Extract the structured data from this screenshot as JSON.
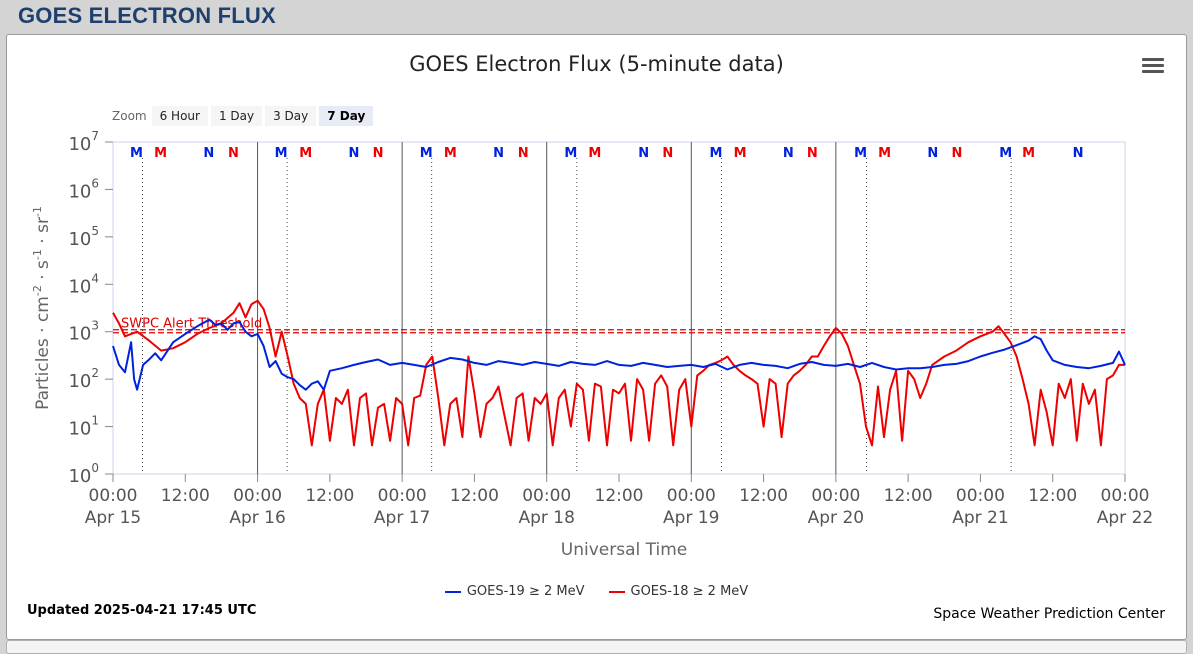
{
  "page_title": "GOES ELECTRON FLUX",
  "zoom": {
    "label": "Zoom",
    "buttons": [
      "6 Hour",
      "1 Day",
      "3 Day",
      "7 Day"
    ],
    "active": "7 Day"
  },
  "updated": "Updated 2025-04-21 17:45 UTC",
  "credit": "Space Weather Prediction Center",
  "chart_data": {
    "type": "line",
    "title": "GOES Electron Flux (5-minute data)",
    "xlabel": "Universal Time",
    "ylabel_parts": [
      "Particles · cm",
      "-2",
      " · s",
      "-1",
      " · sr",
      "-1"
    ],
    "y_scale": "log",
    "ylim": [
      1,
      10000000
    ],
    "y_ticks": [
      {
        "base": "10",
        "exp": "0"
      },
      {
        "base": "10",
        "exp": "1"
      },
      {
        "base": "10",
        "exp": "2"
      },
      {
        "base": "10",
        "exp": "3"
      },
      {
        "base": "10",
        "exp": "4"
      },
      {
        "base": "10",
        "exp": "5"
      },
      {
        "base": "10",
        "exp": "6"
      },
      {
        "base": "10",
        "exp": "7"
      }
    ],
    "x_range_hours": [
      0,
      168
    ],
    "x_ticks": [
      {
        "time": "00:00",
        "date": "Apr 15"
      },
      {
        "time": "12:00",
        "date": ""
      },
      {
        "time": "00:00",
        "date": "Apr 16"
      },
      {
        "time": "12:00",
        "date": ""
      },
      {
        "time": "00:00",
        "date": "Apr 17"
      },
      {
        "time": "12:00",
        "date": ""
      },
      {
        "time": "00:00",
        "date": "Apr 18"
      },
      {
        "time": "12:00",
        "date": ""
      },
      {
        "time": "00:00",
        "date": "Apr 19"
      },
      {
        "time": "12:00",
        "date": ""
      },
      {
        "time": "00:00",
        "date": "Apr 20"
      },
      {
        "time": "12:00",
        "date": ""
      },
      {
        "time": "00:00",
        "date": "Apr 21"
      },
      {
        "time": "12:00",
        "date": ""
      },
      {
        "time": "00:00",
        "date": "Apr 22"
      }
    ],
    "threshold": {
      "label": "SWPC Alert Threshold",
      "value": 1000,
      "color": "#dd0000"
    },
    "grid": false,
    "legend_position": "bottom",
    "series": [
      {
        "name": "GOES-19 ≥ 2 MeV",
        "color": "#0022dd",
        "points": [
          [
            0,
            500
          ],
          [
            1,
            200
          ],
          [
            2,
            140
          ],
          [
            3,
            600
          ],
          [
            3.5,
            100
          ],
          [
            4,
            60
          ],
          [
            5,
            200
          ],
          [
            6,
            260
          ],
          [
            7,
            350
          ],
          [
            8,
            250
          ],
          [
            10,
            600
          ],
          [
            12,
            900
          ],
          [
            14,
            1300
          ],
          [
            16,
            1800
          ],
          [
            17,
            1400
          ],
          [
            18,
            1500
          ],
          [
            19,
            1100
          ],
          [
            20,
            1500
          ],
          [
            21,
            1600
          ],
          [
            22,
            1000
          ],
          [
            23,
            800
          ],
          [
            24,
            900
          ],
          [
            25,
            500
          ],
          [
            26,
            180
          ],
          [
            27,
            240
          ],
          [
            28,
            130
          ],
          [
            29,
            110
          ],
          [
            30,
            100
          ],
          [
            31,
            75
          ],
          [
            32,
            60
          ],
          [
            33,
            80
          ],
          [
            34,
            90
          ],
          [
            35,
            60
          ],
          [
            36,
            150
          ],
          [
            38,
            170
          ],
          [
            40,
            200
          ],
          [
            42,
            230
          ],
          [
            44,
            260
          ],
          [
            46,
            200
          ],
          [
            48,
            220
          ],
          [
            50,
            200
          ],
          [
            52,
            180
          ],
          [
            54,
            230
          ],
          [
            56,
            280
          ],
          [
            58,
            260
          ],
          [
            60,
            220
          ],
          [
            62,
            200
          ],
          [
            64,
            240
          ],
          [
            66,
            220
          ],
          [
            68,
            200
          ],
          [
            70,
            230
          ],
          [
            72,
            210
          ],
          [
            74,
            190
          ],
          [
            76,
            230
          ],
          [
            78,
            210
          ],
          [
            80,
            200
          ],
          [
            82,
            240
          ],
          [
            84,
            200
          ],
          [
            86,
            190
          ],
          [
            88,
            220
          ],
          [
            90,
            200
          ],
          [
            92,
            180
          ],
          [
            94,
            190
          ],
          [
            96,
            200
          ],
          [
            98,
            180
          ],
          [
            100,
            210
          ],
          [
            102,
            160
          ],
          [
            104,
            200
          ],
          [
            106,
            220
          ],
          [
            108,
            200
          ],
          [
            110,
            190
          ],
          [
            112,
            170
          ],
          [
            114,
            210
          ],
          [
            116,
            230
          ],
          [
            118,
            200
          ],
          [
            120,
            190
          ],
          [
            122,
            210
          ],
          [
            124,
            180
          ],
          [
            126,
            220
          ],
          [
            128,
            180
          ],
          [
            130,
            160
          ],
          [
            132,
            170
          ],
          [
            134,
            170
          ],
          [
            136,
            180
          ],
          [
            138,
            200
          ],
          [
            140,
            210
          ],
          [
            142,
            240
          ],
          [
            144,
            300
          ],
          [
            146,
            360
          ],
          [
            148,
            420
          ],
          [
            150,
            520
          ],
          [
            152,
            650
          ],
          [
            153,
            800
          ],
          [
            154,
            700
          ],
          [
            155,
            400
          ],
          [
            156,
            250
          ],
          [
            158,
            200
          ],
          [
            160,
            180
          ],
          [
            162,
            170
          ],
          [
            164,
            190
          ],
          [
            166,
            220
          ],
          [
            167,
            380
          ],
          [
            168,
            200
          ]
        ]
      },
      {
        "name": "GOES-18 ≥ 2 MeV",
        "color": "#ee0000",
        "points": [
          [
            0,
            2500
          ],
          [
            1,
            1500
          ],
          [
            2,
            800
          ],
          [
            4,
            1000
          ],
          [
            6,
            650
          ],
          [
            8,
            400
          ],
          [
            10,
            450
          ],
          [
            12,
            600
          ],
          [
            14,
            900
          ],
          [
            16,
            1200
          ],
          [
            18,
            1500
          ],
          [
            20,
            2500
          ],
          [
            21,
            4000
          ],
          [
            22,
            2000
          ],
          [
            23,
            3800
          ],
          [
            24,
            4500
          ],
          [
            25,
            3000
          ],
          [
            26,
            1200
          ],
          [
            27,
            300
          ],
          [
            28,
            1000
          ],
          [
            29,
            300
          ],
          [
            30,
            80
          ],
          [
            31,
            40
          ],
          [
            32,
            30
          ],
          [
            33,
            4
          ],
          [
            34,
            30
          ],
          [
            35,
            60
          ],
          [
            36,
            5
          ],
          [
            37,
            40
          ],
          [
            38,
            30
          ],
          [
            39,
            60
          ],
          [
            40,
            4
          ],
          [
            41,
            40
          ],
          [
            42,
            50
          ],
          [
            43,
            4
          ],
          [
            44,
            25
          ],
          [
            45,
            30
          ],
          [
            46,
            5
          ],
          [
            47,
            40
          ],
          [
            48,
            30
          ],
          [
            49,
            4
          ],
          [
            50,
            40
          ],
          [
            51,
            45
          ],
          [
            52,
            200
          ],
          [
            53,
            300
          ],
          [
            54,
            40
          ],
          [
            55,
            4
          ],
          [
            56,
            30
          ],
          [
            57,
            40
          ],
          [
            58,
            6
          ],
          [
            59,
            300
          ],
          [
            60,
            50
          ],
          [
            61,
            6
          ],
          [
            62,
            30
          ],
          [
            63,
            40
          ],
          [
            64,
            70
          ],
          [
            66,
            4
          ],
          [
            67,
            40
          ],
          [
            68,
            50
          ],
          [
            69,
            5
          ],
          [
            70,
            40
          ],
          [
            71,
            30
          ],
          [
            72,
            50
          ],
          [
            73,
            4
          ],
          [
            74,
            40
          ],
          [
            75,
            60
          ],
          [
            76,
            10
          ],
          [
            77,
            80
          ],
          [
            78,
            60
          ],
          [
            79,
            5
          ],
          [
            80,
            80
          ],
          [
            81,
            70
          ],
          [
            82,
            4
          ],
          [
            83,
            60
          ],
          [
            84,
            50
          ],
          [
            85,
            80
          ],
          [
            86,
            5
          ],
          [
            87,
            100
          ],
          [
            88,
            60
          ],
          [
            89,
            5
          ],
          [
            90,
            80
          ],
          [
            91,
            120
          ],
          [
            92,
            70
          ],
          [
            93,
            4
          ],
          [
            94,
            60
          ],
          [
            95,
            100
          ],
          [
            96,
            10
          ],
          [
            97,
            120
          ],
          [
            98,
            150
          ],
          [
            99,
            200
          ],
          [
            100,
            220
          ],
          [
            101,
            250
          ],
          [
            102,
            300
          ],
          [
            103,
            200
          ],
          [
            104,
            150
          ],
          [
            105,
            120
          ],
          [
            106,
            100
          ],
          [
            107,
            80
          ],
          [
            108,
            10
          ],
          [
            109,
            100
          ],
          [
            110,
            80
          ],
          [
            111,
            6
          ],
          [
            112,
            80
          ],
          [
            113,
            120
          ],
          [
            114,
            150
          ],
          [
            115,
            200
          ],
          [
            116,
            300
          ],
          [
            117,
            300
          ],
          [
            118,
            500
          ],
          [
            119,
            800
          ],
          [
            120,
            1200
          ],
          [
            121,
            900
          ],
          [
            122,
            500
          ],
          [
            123,
            200
          ],
          [
            124,
            80
          ],
          [
            125,
            10
          ],
          [
            126,
            4
          ],
          [
            127,
            70
          ],
          [
            128,
            6
          ],
          [
            129,
            60
          ],
          [
            130,
            150
          ],
          [
            131,
            5
          ],
          [
            132,
            150
          ],
          [
            133,
            100
          ],
          [
            134,
            40
          ],
          [
            135,
            80
          ],
          [
            136,
            200
          ],
          [
            138,
            300
          ],
          [
            140,
            400
          ],
          [
            142,
            600
          ],
          [
            144,
            800
          ],
          [
            146,
            1000
          ],
          [
            147,
            1300
          ],
          [
            148,
            900
          ],
          [
            149,
            600
          ],
          [
            150,
            300
          ],
          [
            151,
            100
          ],
          [
            152,
            30
          ],
          [
            153,
            4
          ],
          [
            154,
            60
          ],
          [
            155,
            20
          ],
          [
            156,
            4
          ],
          [
            157,
            80
          ],
          [
            158,
            40
          ],
          [
            159,
            100
          ],
          [
            160,
            5
          ],
          [
            161,
            80
          ],
          [
            162,
            30
          ],
          [
            163,
            60
          ],
          [
            164,
            4
          ],
          [
            165,
            100
          ],
          [
            166,
            120
          ],
          [
            167,
            200
          ],
          [
            168,
            200
          ]
        ]
      }
    ],
    "annotations": [
      {
        "hour": 3.9,
        "label": "M",
        "color": "#0022dd"
      },
      {
        "hour": 7.9,
        "label": "M",
        "color": "#ee0000"
      },
      {
        "hour": 15.9,
        "label": "N",
        "color": "#0022dd"
      },
      {
        "hour": 20.0,
        "label": "N",
        "color": "#ee0000"
      },
      {
        "hour": 27.9,
        "label": "M",
        "color": "#0022dd"
      },
      {
        "hour": 32.0,
        "label": "M",
        "color": "#ee0000"
      },
      {
        "hour": 40.0,
        "label": "N",
        "color": "#0022dd"
      },
      {
        "hour": 44.0,
        "label": "N",
        "color": "#ee0000"
      },
      {
        "hour": 52.0,
        "label": "M",
        "color": "#0022dd"
      },
      {
        "hour": 56.0,
        "label": "M",
        "color": "#ee0000"
      },
      {
        "hour": 64.0,
        "label": "N",
        "color": "#0022dd"
      },
      {
        "hour": 68.1,
        "label": "N",
        "color": "#ee0000"
      },
      {
        "hour": 76.0,
        "label": "M",
        "color": "#0022dd"
      },
      {
        "hour": 80.0,
        "label": "M",
        "color": "#ee0000"
      },
      {
        "hour": 88.1,
        "label": "N",
        "color": "#0022dd"
      },
      {
        "hour": 92.1,
        "label": "N",
        "color": "#ee0000"
      },
      {
        "hour": 100.1,
        "label": "M",
        "color": "#0022dd"
      },
      {
        "hour": 104.1,
        "label": "M",
        "color": "#ee0000"
      },
      {
        "hour": 112.1,
        "label": "N",
        "color": "#0022dd"
      },
      {
        "hour": 116.1,
        "label": "N",
        "color": "#ee0000"
      },
      {
        "hour": 124.1,
        "label": "M",
        "color": "#0022dd"
      },
      {
        "hour": 128.1,
        "label": "M",
        "color": "#ee0000"
      },
      {
        "hour": 136.1,
        "label": "N",
        "color": "#0022dd"
      },
      {
        "hour": 140.1,
        "label": "N",
        "color": "#ee0000"
      },
      {
        "hour": 148.2,
        "label": "M",
        "color": "#0022dd"
      },
      {
        "hour": 152.0,
        "label": "M",
        "color": "#ee0000"
      },
      {
        "hour": 160.2,
        "label": "N",
        "color": "#0022dd"
      }
    ],
    "dotted_marker_hours": [
      4.9,
      28.9,
      52.9,
      77.0,
      101.0,
      125.1,
      149.1
    ],
    "day_boundary_hours": [
      24,
      48,
      72,
      96,
      120
    ]
  }
}
